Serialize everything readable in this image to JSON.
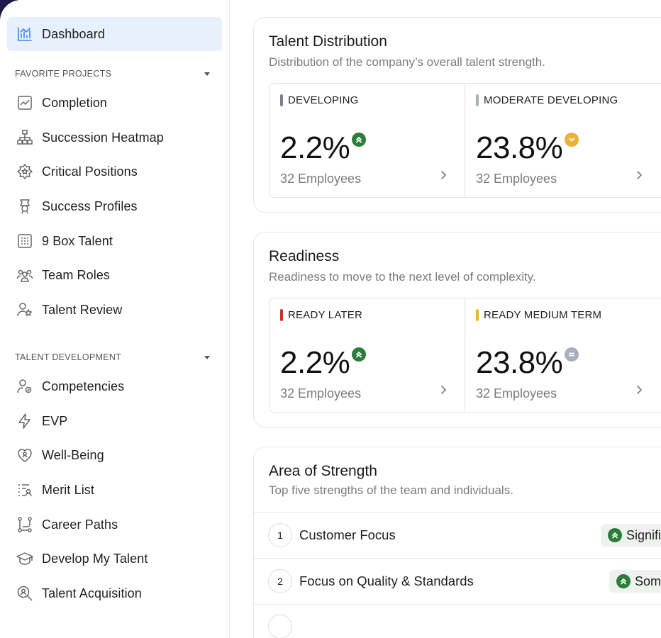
{
  "sidebar": {
    "dashboard": "Dashboard",
    "favorites_title": "FAVORITE PROJECTS",
    "favorites": [
      {
        "label": "Completion",
        "icon": "chart-line-icon"
      },
      {
        "label": "Succession Heatmap",
        "icon": "hierarchy-icon"
      },
      {
        "label": "Critical Positions",
        "icon": "star-badge-icon"
      },
      {
        "label": "Success Profiles",
        "icon": "award-icon"
      },
      {
        "label": "9 Box Talent",
        "icon": "grid-icon"
      },
      {
        "label": "Team Roles",
        "icon": "team-icon"
      },
      {
        "label": "Talent Review",
        "icon": "user-star-icon"
      }
    ],
    "talent_title": "TALENT DEVELOPMENT",
    "talent": [
      {
        "label": "Competencies",
        "icon": "user-gear-icon"
      },
      {
        "label": "EVP",
        "icon": "lightning-icon"
      },
      {
        "label": "Well-Being",
        "icon": "heart-user-icon"
      },
      {
        "label": "Merit List",
        "icon": "list-user-icon"
      },
      {
        "label": "Career Paths",
        "icon": "path-icon"
      },
      {
        "label": "Develop My Talent",
        "icon": "graduation-cap-icon"
      },
      {
        "label": "Talent Acquisition",
        "icon": "search-user-icon"
      }
    ]
  },
  "distribution": {
    "title": "Talent Distribution",
    "subtitle": "Distribution of the company’s overall talent strength.",
    "stats": [
      {
        "label": "DEVELOPING",
        "value": "2.2%",
        "employees": "32 Employees",
        "bar_color": "#7b7f8c",
        "badge": "up",
        "badge_color": "#2c7d3a"
      },
      {
        "label": "MODERATE DEVELOPING",
        "value": "23.8%",
        "employees": "32 Employees",
        "bar_color": "#a9b1bd",
        "badge": "down",
        "badge_color": "#e6b43a"
      }
    ]
  },
  "readiness": {
    "title": "Readiness",
    "subtitle": "Readiness to move to the next level of complexity.",
    "stats": [
      {
        "label": "READY LATER",
        "value": "2.2%",
        "employees": "32 Employees",
        "bar_color": "#c0392b",
        "badge": "up",
        "badge_color": "#2c7d3a"
      },
      {
        "label": "READY MEDIUM TERM",
        "value": "23.8%",
        "employees": "32 Employees",
        "bar_color": "#f0b429",
        "badge": "equal",
        "badge_color": "#a8b0bd"
      }
    ]
  },
  "strength": {
    "title": "Area of Strength",
    "subtitle": "Top five strengths of the team and individuals.",
    "rows": [
      {
        "rank": "1",
        "name": "Customer Focus",
        "tag": "Signifi"
      },
      {
        "rank": "2",
        "name": "Focus on Quality & Standards",
        "tag": "Som"
      }
    ]
  },
  "colors": {
    "accent": "#3b82f6",
    "active_bg": "#e8f0fb",
    "green": "#2c7d3a"
  }
}
